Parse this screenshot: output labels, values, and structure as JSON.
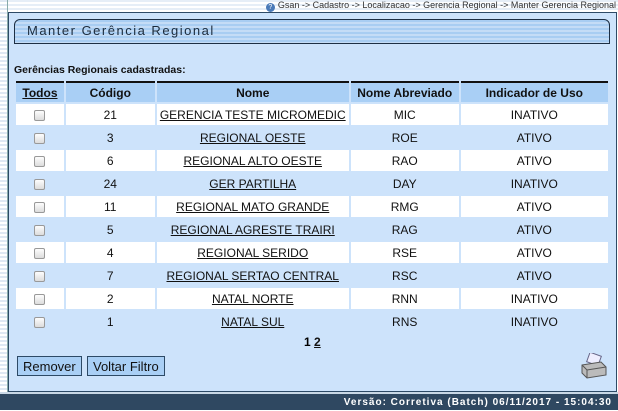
{
  "breadcrumb": "Gsan -> Cadastro -> Localizacao -> Gerencia Regional -> Manter Gerencia Regional",
  "title": "Manter Gerência Regional",
  "subtitle": "Gerências Regionais cadastradas:",
  "columns": {
    "todos": "Todos",
    "codigo": "Código",
    "nome": "Nome",
    "abrev": "Nome Abreviado",
    "uso": "Indicador de Uso"
  },
  "rows": [
    {
      "codigo": "21",
      "nome": "GERENCIA TESTE MICROMEDIC",
      "abrev": "MIC",
      "uso": "INATIVO"
    },
    {
      "codigo": "3",
      "nome": "REGIONAL OESTE",
      "abrev": "ROE",
      "uso": "ATIVO"
    },
    {
      "codigo": "6",
      "nome": "REGIONAL ALTO OESTE",
      "abrev": "RAO",
      "uso": "ATIVO"
    },
    {
      "codigo": "24",
      "nome": "GER PARTILHA",
      "abrev": "DAY",
      "uso": "INATIVO"
    },
    {
      "codigo": "11",
      "nome": "REGIONAL MATO GRANDE",
      "abrev": "RMG",
      "uso": "ATIVO"
    },
    {
      "codigo": "5",
      "nome": "REGIONAL AGRESTE TRAIRI",
      "abrev": "RAG",
      "uso": "ATIVO"
    },
    {
      "codigo": "4",
      "nome": "REGIONAL SERIDO",
      "abrev": "RSE",
      "uso": "ATIVO"
    },
    {
      "codigo": "7",
      "nome": "REGIONAL SERTAO CENTRAL",
      "abrev": "RSC",
      "uso": "ATIVO"
    },
    {
      "codigo": "2",
      "nome": "NATAL NORTE",
      "abrev": "RNN",
      "uso": "INATIVO"
    },
    {
      "codigo": "1",
      "nome": "NATAL SUL",
      "abrev": "RNS",
      "uso": "INATIVO"
    }
  ],
  "pager": {
    "current": "1",
    "next": "2"
  },
  "buttons": {
    "remover": "Remover",
    "voltar": "Voltar Filtro"
  },
  "footer": "Versão: Corretiva (Batch) 06/11/2017 - 15:04:30"
}
